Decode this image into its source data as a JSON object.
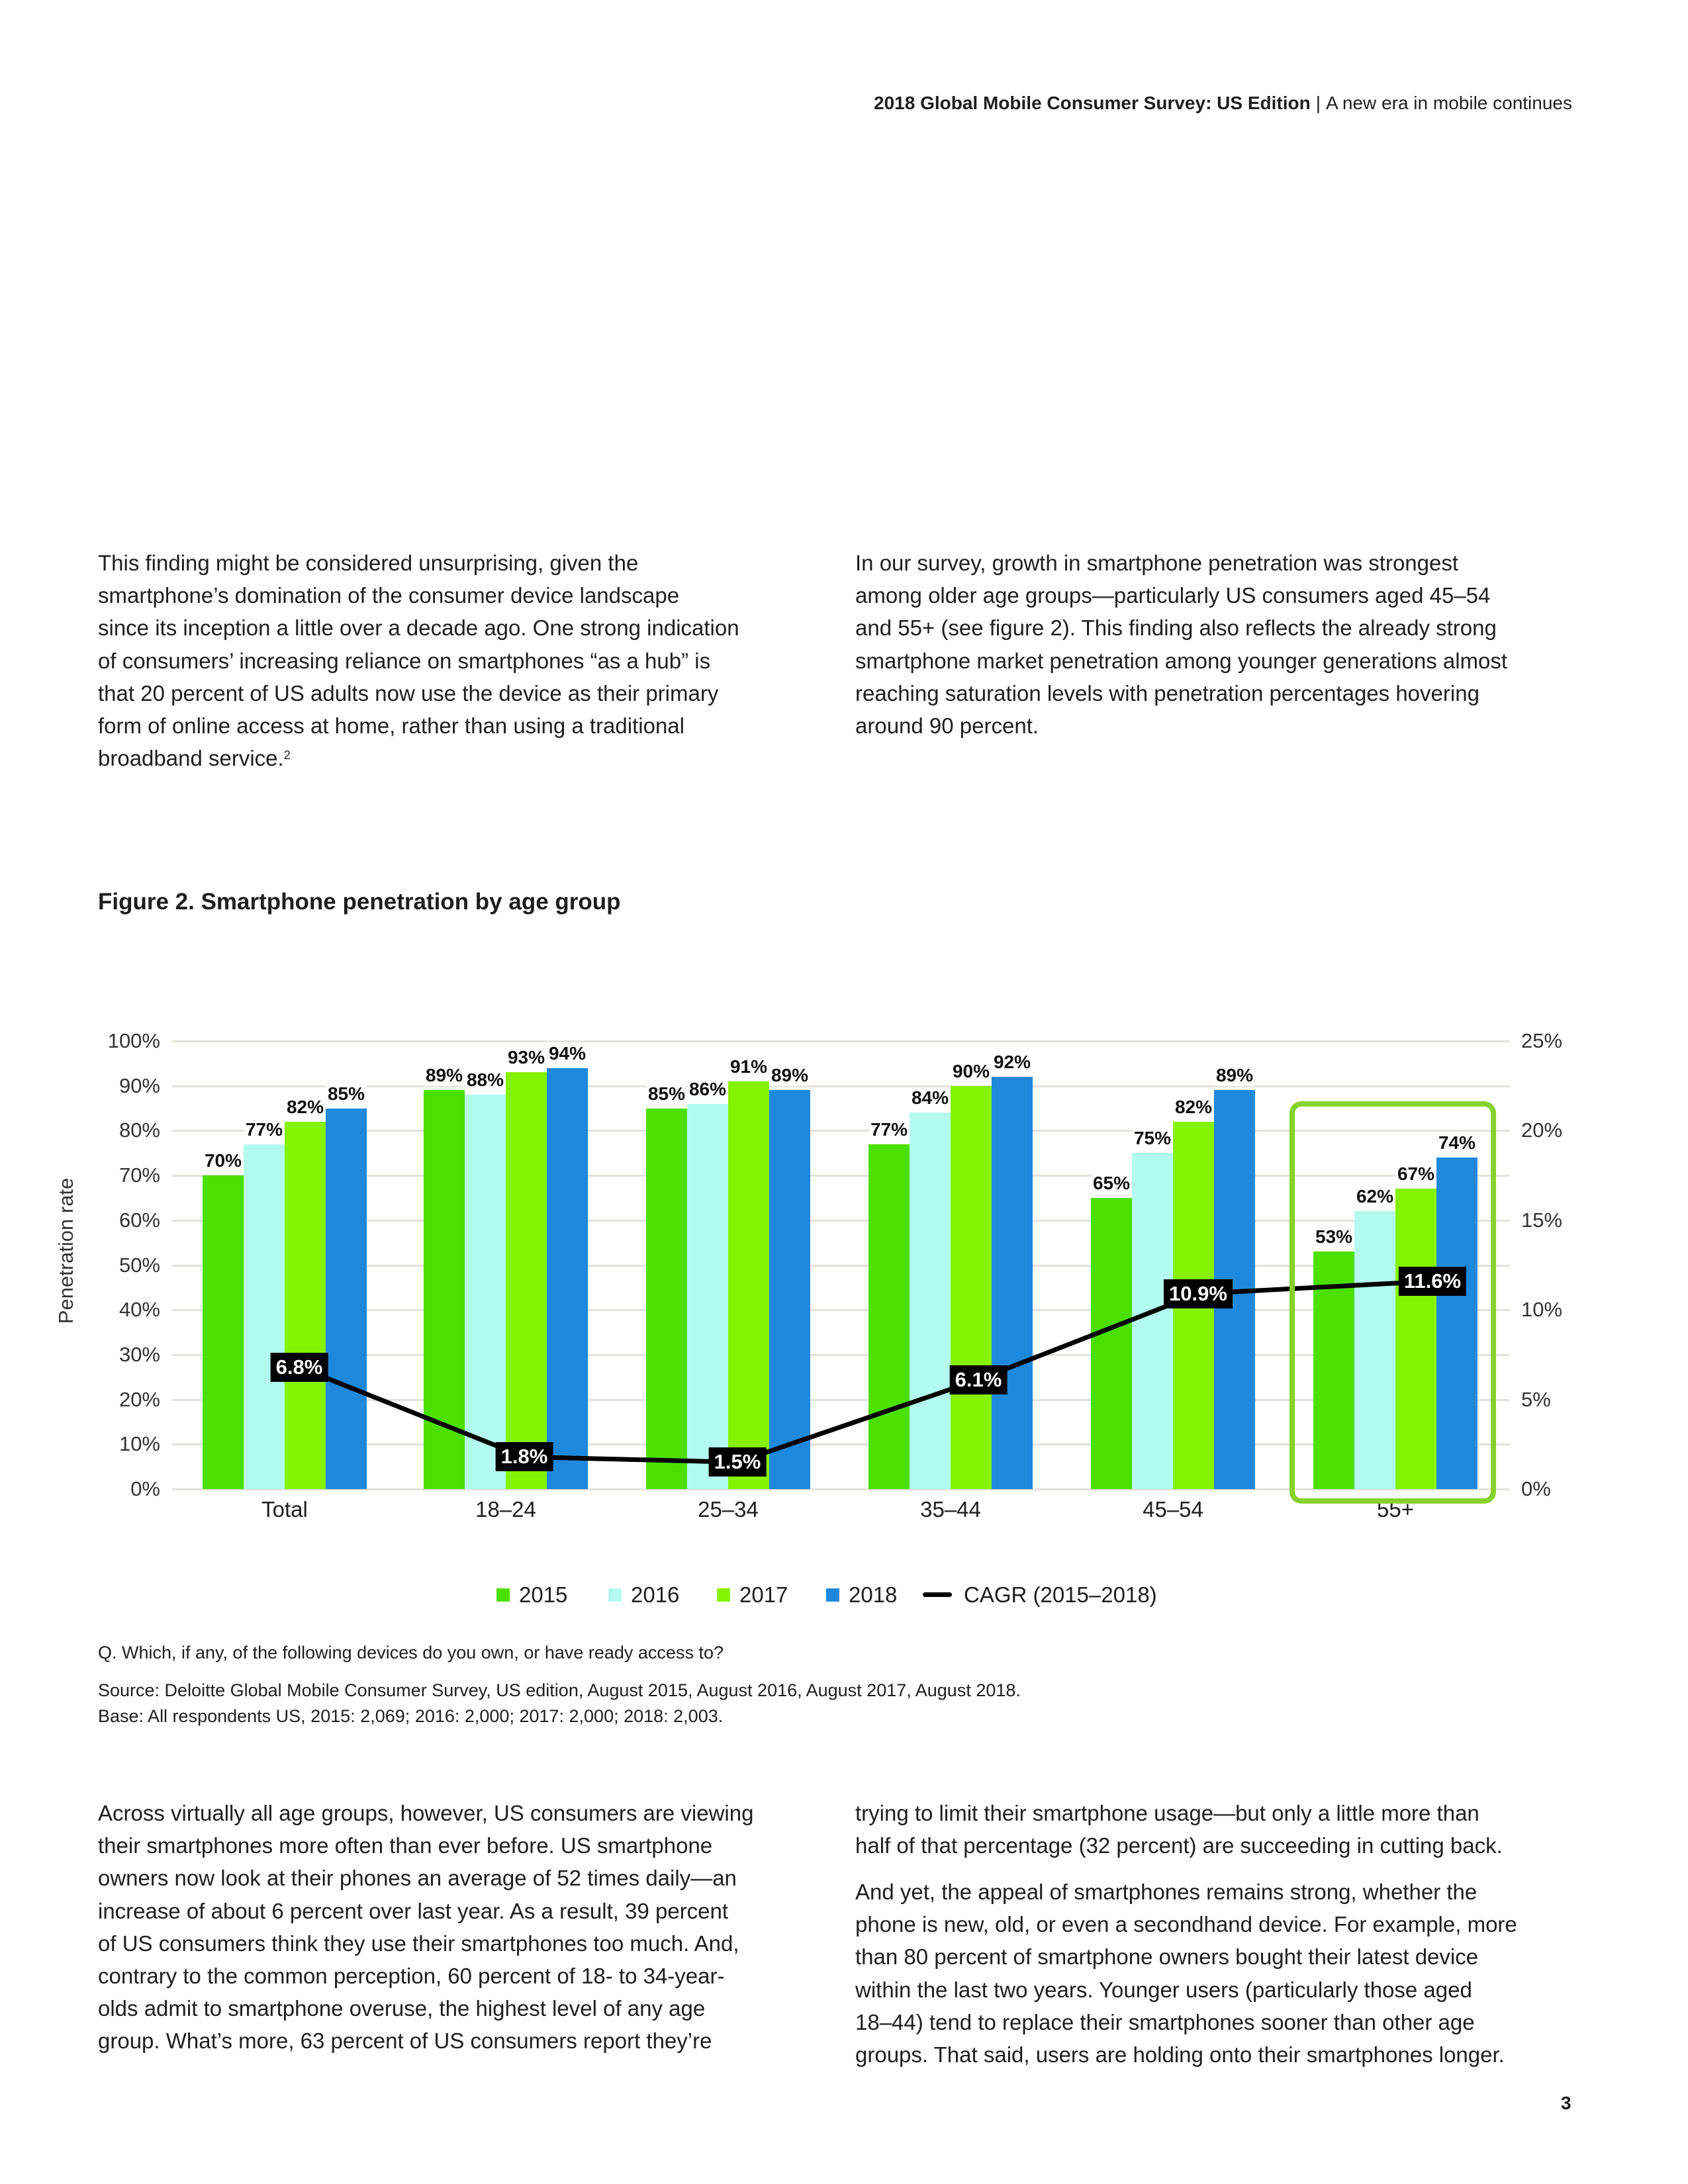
{
  "header": {
    "title_bold": "2018 Global Mobile Consumer Survey: US Edition",
    "separator": "|",
    "subtitle": "A new era in mobile continues"
  },
  "intro_left": {
    "lines": [
      "This finding might be considered unsurprising, given the",
      "smartphone’s domination of the consumer device landscape",
      "since its inception a little over a decade ago. One strong indication",
      "of consumers’ increasing reliance on smartphones “as a hub” is",
      "that 20 percent of US adults now use the device as their primary",
      "form of online access at home, rather than using a traditional",
      "broadband service."
    ],
    "footnote_ref": "2"
  },
  "intro_right": {
    "lines": [
      "In our survey, growth in smartphone penetration was strongest",
      "among older age groups—particularly US consumers aged 45–54",
      "and 55+ (see figure 2). This finding also reflects the already strong",
      "smartphone market penetration among younger generations almost",
      "reaching saturation levels with penetration percentages hovering",
      "around 90 percent."
    ]
  },
  "figure_title": "Figure 2. Smartphone penetration by age group",
  "chart_data": {
    "type": "bar",
    "title": "Figure 2. Smartphone penetration by age group",
    "ylabel": "Penetration rate",
    "ylim": [
      0,
      100
    ],
    "y2lim": [
      0,
      25
    ],
    "yticks": [
      "0%",
      "10%",
      "20%",
      "30%",
      "40%",
      "50%",
      "60%",
      "70%",
      "80%",
      "90%",
      "100%"
    ],
    "y2ticks": [
      "0%",
      "5%",
      "10%",
      "15%",
      "20%",
      "25%"
    ],
    "grid": true,
    "legend_placement": "bottom",
    "categories": [
      "Total",
      "18–24",
      "25–34",
      "35–44",
      "45–54",
      "55+"
    ],
    "highlighted_category": "55+",
    "series": [
      {
        "name": "2015",
        "color": "#4ce000",
        "values": [
          70,
          89,
          85,
          77,
          65,
          53
        ],
        "labels": [
          "70%",
          "89%",
          "85%",
          "77%",
          "65%",
          "53%"
        ]
      },
      {
        "name": "2016",
        "color": "#b3fbee",
        "values": [
          77,
          88,
          86,
          84,
          75,
          62
        ],
        "labels": [
          "77%",
          "88%",
          "86%",
          "84%",
          "75%",
          "62%"
        ]
      },
      {
        "name": "2017",
        "color": "#84f200",
        "values": [
          82,
          93,
          91,
          90,
          82,
          67
        ],
        "labels": [
          "82%",
          "93%",
          "91%",
          "90%",
          "82%",
          "67%"
        ]
      },
      {
        "name": "2018",
        "color": "#1e88dc",
        "values": [
          85,
          94,
          89,
          92,
          89,
          74
        ],
        "labels": [
          "85%",
          "94%",
          "89%",
          "92%",
          "89%",
          "74%"
        ]
      }
    ],
    "line_series": {
      "name": "CAGR (2015–2018)",
      "color": "#000000",
      "axis": "right",
      "values": [
        6.8,
        1.8,
        1.5,
        6.1,
        10.9,
        11.6
      ],
      "labels": [
        "6.8%",
        "1.8%",
        "1.5%",
        "6.1%",
        "10.9%",
        "11.6%"
      ]
    },
    "highlight_color": "#86d22a"
  },
  "notes": {
    "question": "Q. Which, if any, of the following devices do you own, or have ready access to?",
    "source": "Source: Deloitte Global Mobile Consumer Survey, US edition, August 2015, August 2016, August 2017, August 2018.",
    "base": "Base: All respondents US, 2015: 2,069; 2016: 2,000; 2017: 2,000; 2018: 2,003."
  },
  "body_left": {
    "lines": [
      "Across virtually all age groups, however, US consumers are viewing",
      "their smartphones more often than ever before. US smartphone",
      "owners now look at their phones an average of 52 times daily—an",
      "increase of about 6 percent over last year. As a result, 39 percent",
      "of US consumers think they use their smartphones too much. And,",
      "contrary to the common perception, 60 percent of 18- to 34-year-",
      "olds admit to smartphone overuse, the highest level of any age",
      "group. What’s more, 63 percent of US consumers report they’re"
    ]
  },
  "body_right_1": {
    "lines": [
      "trying to limit their smartphone usage—but only a little more than",
      "half of that percentage (32 percent) are succeeding in cutting back."
    ]
  },
  "body_right_2": {
    "lines": [
      "And yet, the appeal of smartphones remains strong, whether the",
      "phone is new, old, or even a secondhand device. For example, more",
      "than 80 percent of smartphone owners bought their latest device",
      "within the last two years. Younger users (particularly those aged",
      "18–44) tend to replace their smartphones sooner than other age",
      "groups. That said, users are holding onto their smartphones longer."
    ]
  },
  "page_number": "3"
}
